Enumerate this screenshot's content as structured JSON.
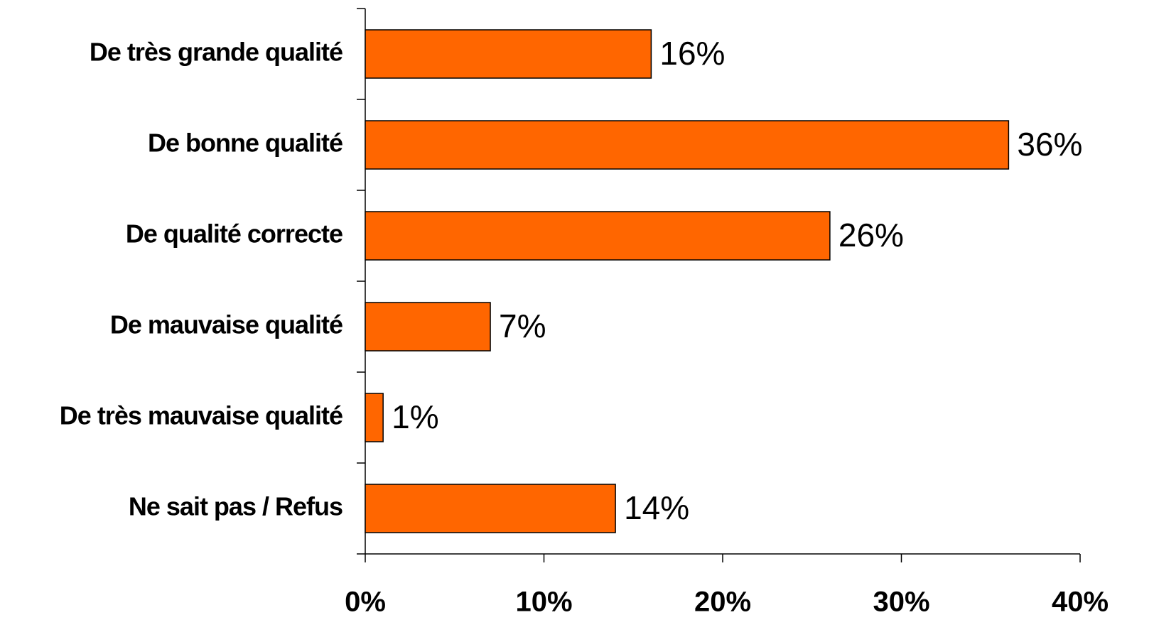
{
  "chart_data": {
    "type": "hbar",
    "categories": [
      "De très grande qualité",
      "De bonne qualité",
      "De qualité correcte",
      "De mauvaise qualité",
      "De très mauvaise qualité",
      "Ne sait pas / Refus"
    ],
    "values": [
      16,
      36,
      26,
      7,
      1,
      14
    ],
    "value_labels": [
      "16%",
      "36%",
      "26%",
      "7%",
      "1%",
      "14%"
    ],
    "color": "#ff6600",
    "xlim": [
      0,
      40
    ],
    "xticks": [
      {
        "value": 0,
        "label": "0%"
      },
      {
        "value": 10,
        "label": "10%"
      },
      {
        "value": 20,
        "label": "20%"
      },
      {
        "value": 30,
        "label": "30%"
      },
      {
        "value": 40,
        "label": "40%"
      }
    ]
  }
}
